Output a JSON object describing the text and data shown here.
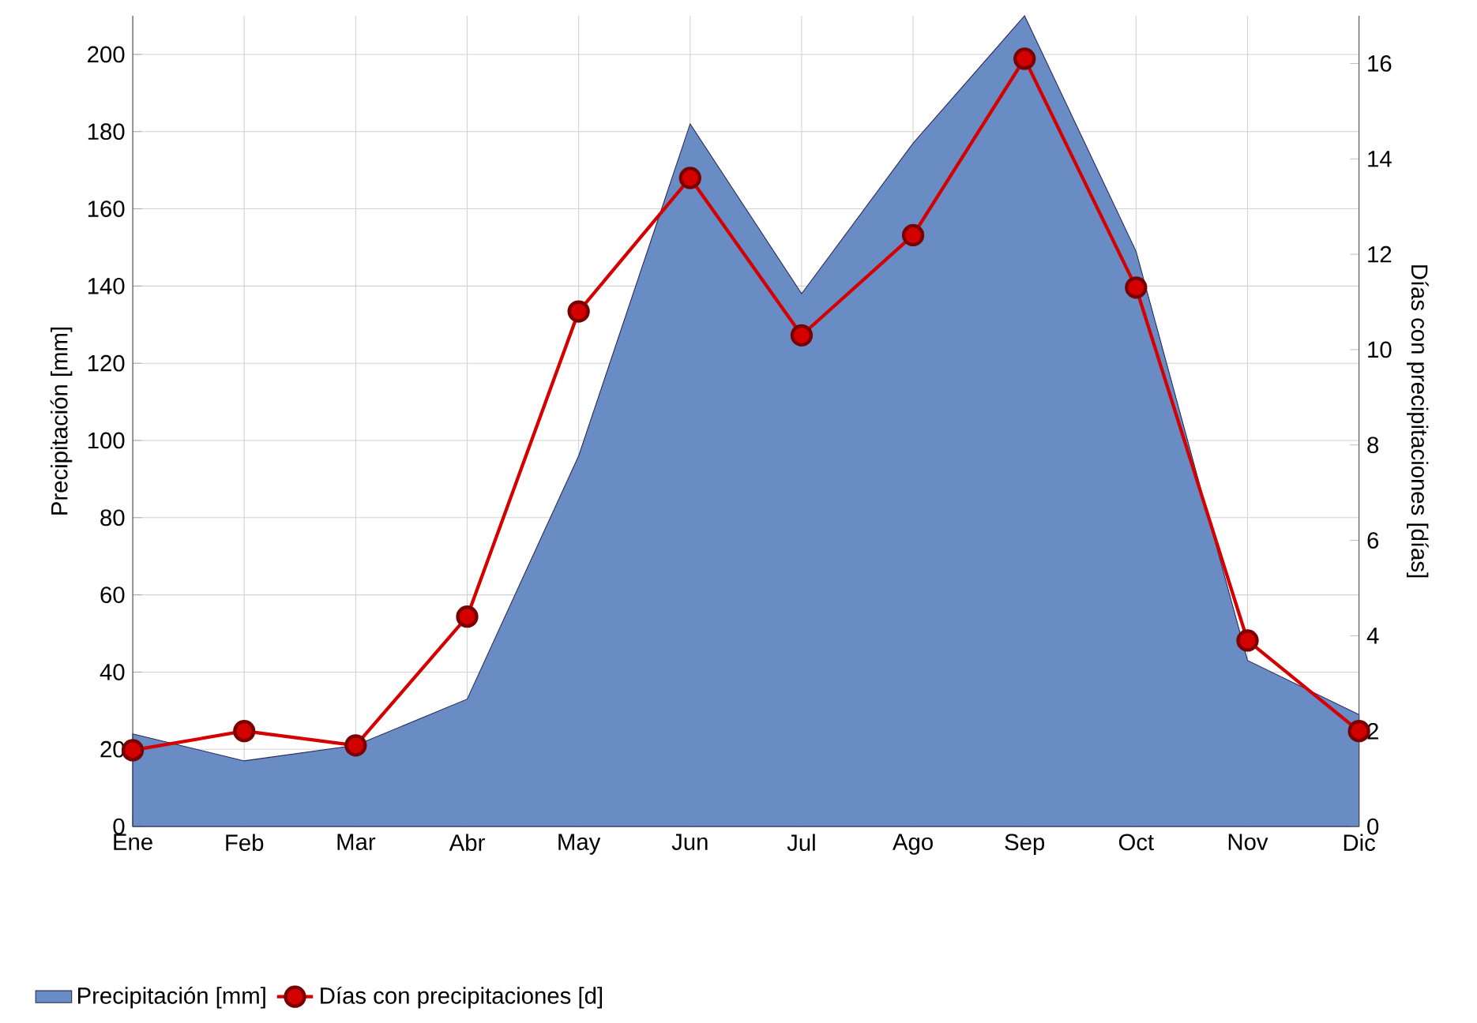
{
  "chart_data": {
    "type": "area",
    "categories": [
      "Ene",
      "Feb",
      "Mar",
      "Abr",
      "May",
      "Jun",
      "Jul",
      "Ago",
      "Sep",
      "Oct",
      "Nov",
      "Dic"
    ],
    "series": [
      {
        "name": "Precipitación [mm]",
        "color": "#6a8cc4",
        "values": [
          24,
          17,
          21,
          33,
          96,
          182,
          138,
          177,
          210,
          149,
          43,
          29
        ]
      },
      {
        "name": "Días con precipitaciones [d]",
        "type": "line",
        "axis": "y2",
        "marker": "circle",
        "color": "#d40000",
        "values": [
          1.6,
          2.0,
          1.7,
          4.4,
          10.8,
          13.6,
          10.3,
          12.4,
          16.1,
          11.3,
          3.9,
          2.0
        ]
      }
    ],
    "ylabel": "Precipitación [mm]",
    "y2label": "Días con precipitaciones [días]",
    "ylim": [
      0,
      210
    ],
    "yticks": [
      0,
      20,
      40,
      60,
      80,
      100,
      120,
      140,
      160,
      180,
      200
    ],
    "y2lim": [
      0,
      17
    ],
    "y2ticks": [
      0,
      2,
      4,
      6,
      8,
      10,
      12,
      14,
      16
    ],
    "grid": true,
    "legend": "bottom"
  }
}
